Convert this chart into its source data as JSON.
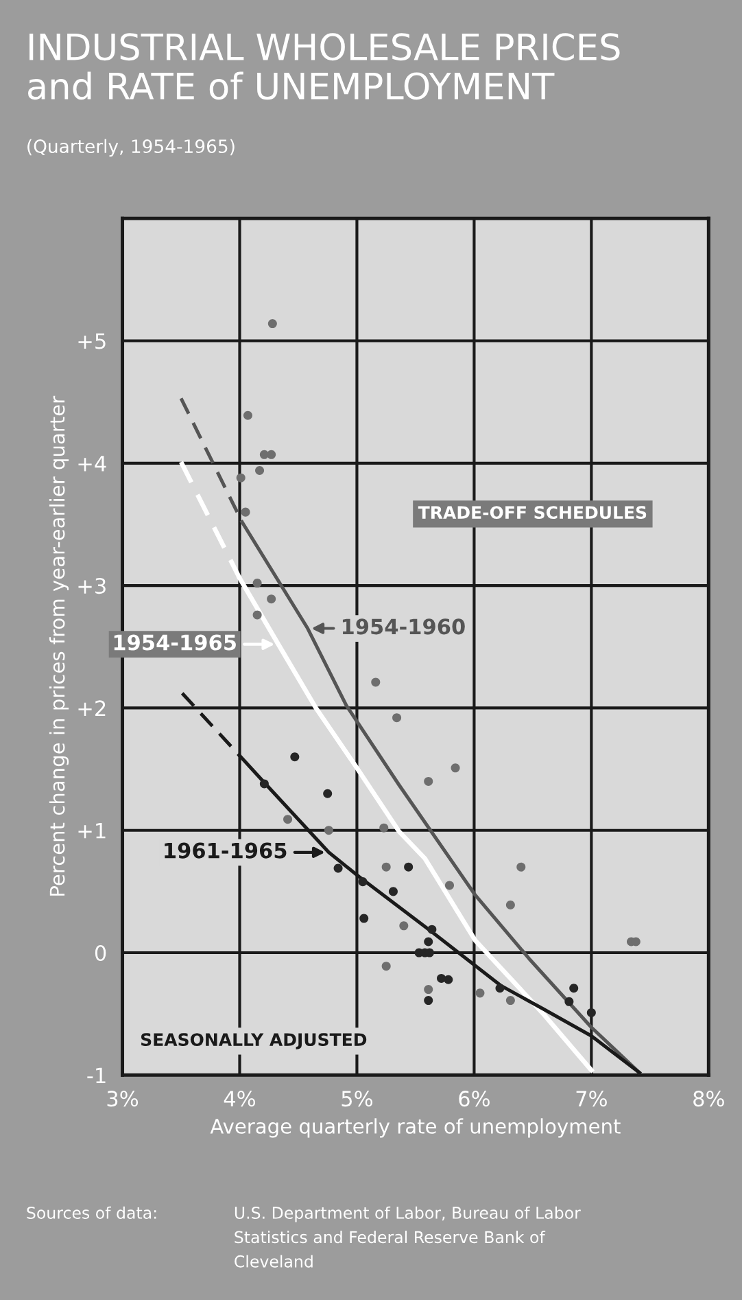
{
  "chart_data": {
    "type": "scatter",
    "title": "INDUSTRIAL WHOLESALE PRICES\nand RATE of UNEMPLOYMENT",
    "subtitle": "(Quarterly, 1954-1965)",
    "xlabel": "Average quarterly rate of unemployment",
    "ylabel": "Percent change in prices from year-earlier quarter",
    "xlim": [
      3,
      8
    ],
    "ylim": [
      -1,
      6
    ],
    "xticks": [
      {
        "value": 3,
        "label": "3%"
      },
      {
        "value": 4,
        "label": "4%"
      },
      {
        "value": 5,
        "label": "5%"
      },
      {
        "value": 6,
        "label": "6%"
      },
      {
        "value": 7,
        "label": "7%"
      },
      {
        "value": 8,
        "label": "8%"
      }
    ],
    "yticks": [
      {
        "value": -1,
        "label": "-1"
      },
      0,
      {
        "value": 1,
        "label": "+1"
      },
      {
        "value": 2,
        "label": "+2"
      },
      {
        "value": 3,
        "label": "+3"
      },
      {
        "value": 4,
        "label": "+4"
      },
      {
        "value": 5,
        "label": "+5"
      }
    ],
    "grid": true,
    "legend": "left",
    "series": [
      {
        "marker": "circle",
        "color": "#6e6e6e",
        "x": [
          4.28,
          4.07,
          4.21,
          4.27,
          4.17,
          4.01,
          4.05,
          4.15,
          4.27,
          4.15,
          5.16,
          5.34,
          5.84,
          5.61,
          4.41,
          4.76,
          5.23,
          5.25,
          5.79,
          5.4,
          5.25,
          5.61,
          6.05,
          6.4,
          6.31,
          6.31,
          7.34,
          7.38
        ],
        "values": [
          5.14,
          4.39,
          4.07,
          4.07,
          3.94,
          3.88,
          3.6,
          3.02,
          2.89,
          2.76,
          2.21,
          1.92,
          1.51,
          1.4,
          1.09,
          1.0,
          1.02,
          0.7,
          0.55,
          0.22,
          -0.11,
          -0.3,
          -0.33,
          0.7,
          0.39,
          -0.39,
          0.09,
          0.09
        ]
      },
      {
        "marker": "circle",
        "color": "#262626",
        "x": [
          4.47,
          4.21,
          4.75,
          4.84,
          5.05,
          5.44,
          5.31,
          5.06,
          5.64,
          5.61,
          5.53,
          5.58,
          5.62,
          5.72,
          5.78,
          5.61,
          6.22,
          6.85,
          6.81,
          7.0
        ],
        "values": [
          1.6,
          1.38,
          1.3,
          0.69,
          0.58,
          0.7,
          0.5,
          0.28,
          0.19,
          0.09,
          0.0,
          0.0,
          0.0,
          -0.21,
          -0.22,
          -0.39,
          -0.29,
          -0.29,
          -0.4,
          -0.49
        ]
      },
      {
        "type": "line",
        "color": "#555555",
        "line_style": "dashed",
        "x": [
          3.5,
          4.02
        ],
        "values": [
          4.53,
          3.52
        ]
      },
      {
        "type": "line",
        "name": "1954-1960",
        "color": "#555555",
        "line_style": "solid",
        "x": [
          4.02,
          4.58,
          4.91,
          5.36,
          6.01,
          6.47,
          7.0,
          7.41
        ],
        "values": [
          3.52,
          2.65,
          2.02,
          1.37,
          0.47,
          -0.05,
          -0.61,
          -0.98
        ]
      },
      {
        "type": "line",
        "color": "#ffffff",
        "line_style": "dashed",
        "x": [
          3.5,
          4.0
        ],
        "values": [
          4.01,
          3.06
        ]
      },
      {
        "type": "line",
        "name": "1954-1965",
        "color": "#ffffff",
        "line_style": "solid",
        "x": [
          4.0,
          4.33,
          4.65,
          5.0,
          5.36,
          5.58,
          6.01,
          6.59,
          7.0
        ],
        "values": [
          3.06,
          2.52,
          2.0,
          1.51,
          0.99,
          0.77,
          0.1,
          -0.5,
          -0.96
        ]
      },
      {
        "type": "line",
        "color": "#1a1a1a",
        "line_style": "dashed",
        "x": [
          3.51,
          4.0
        ],
        "values": [
          2.12,
          1.61
        ]
      },
      {
        "type": "line",
        "name": "1961-1965",
        "color": "#1a1a1a",
        "line_style": "solid",
        "x": [
          4.0,
          4.22,
          4.76,
          5.02,
          5.64,
          6.23,
          6.59,
          7.0,
          7.41
        ],
        "values": [
          1.61,
          1.38,
          0.82,
          0.62,
          0.17,
          -0.27,
          -0.46,
          -0.68,
          -0.98
        ]
      }
    ],
    "annotations": [
      "TRADE-OFF SCHEDULES",
      "SEASONALLY ADJUSTED",
      "Sources of data:",
      "U.S. Department of Labor, Bureau of Labor\nStatistics and Federal Reserve Bank of\nCleveland"
    ]
  }
}
